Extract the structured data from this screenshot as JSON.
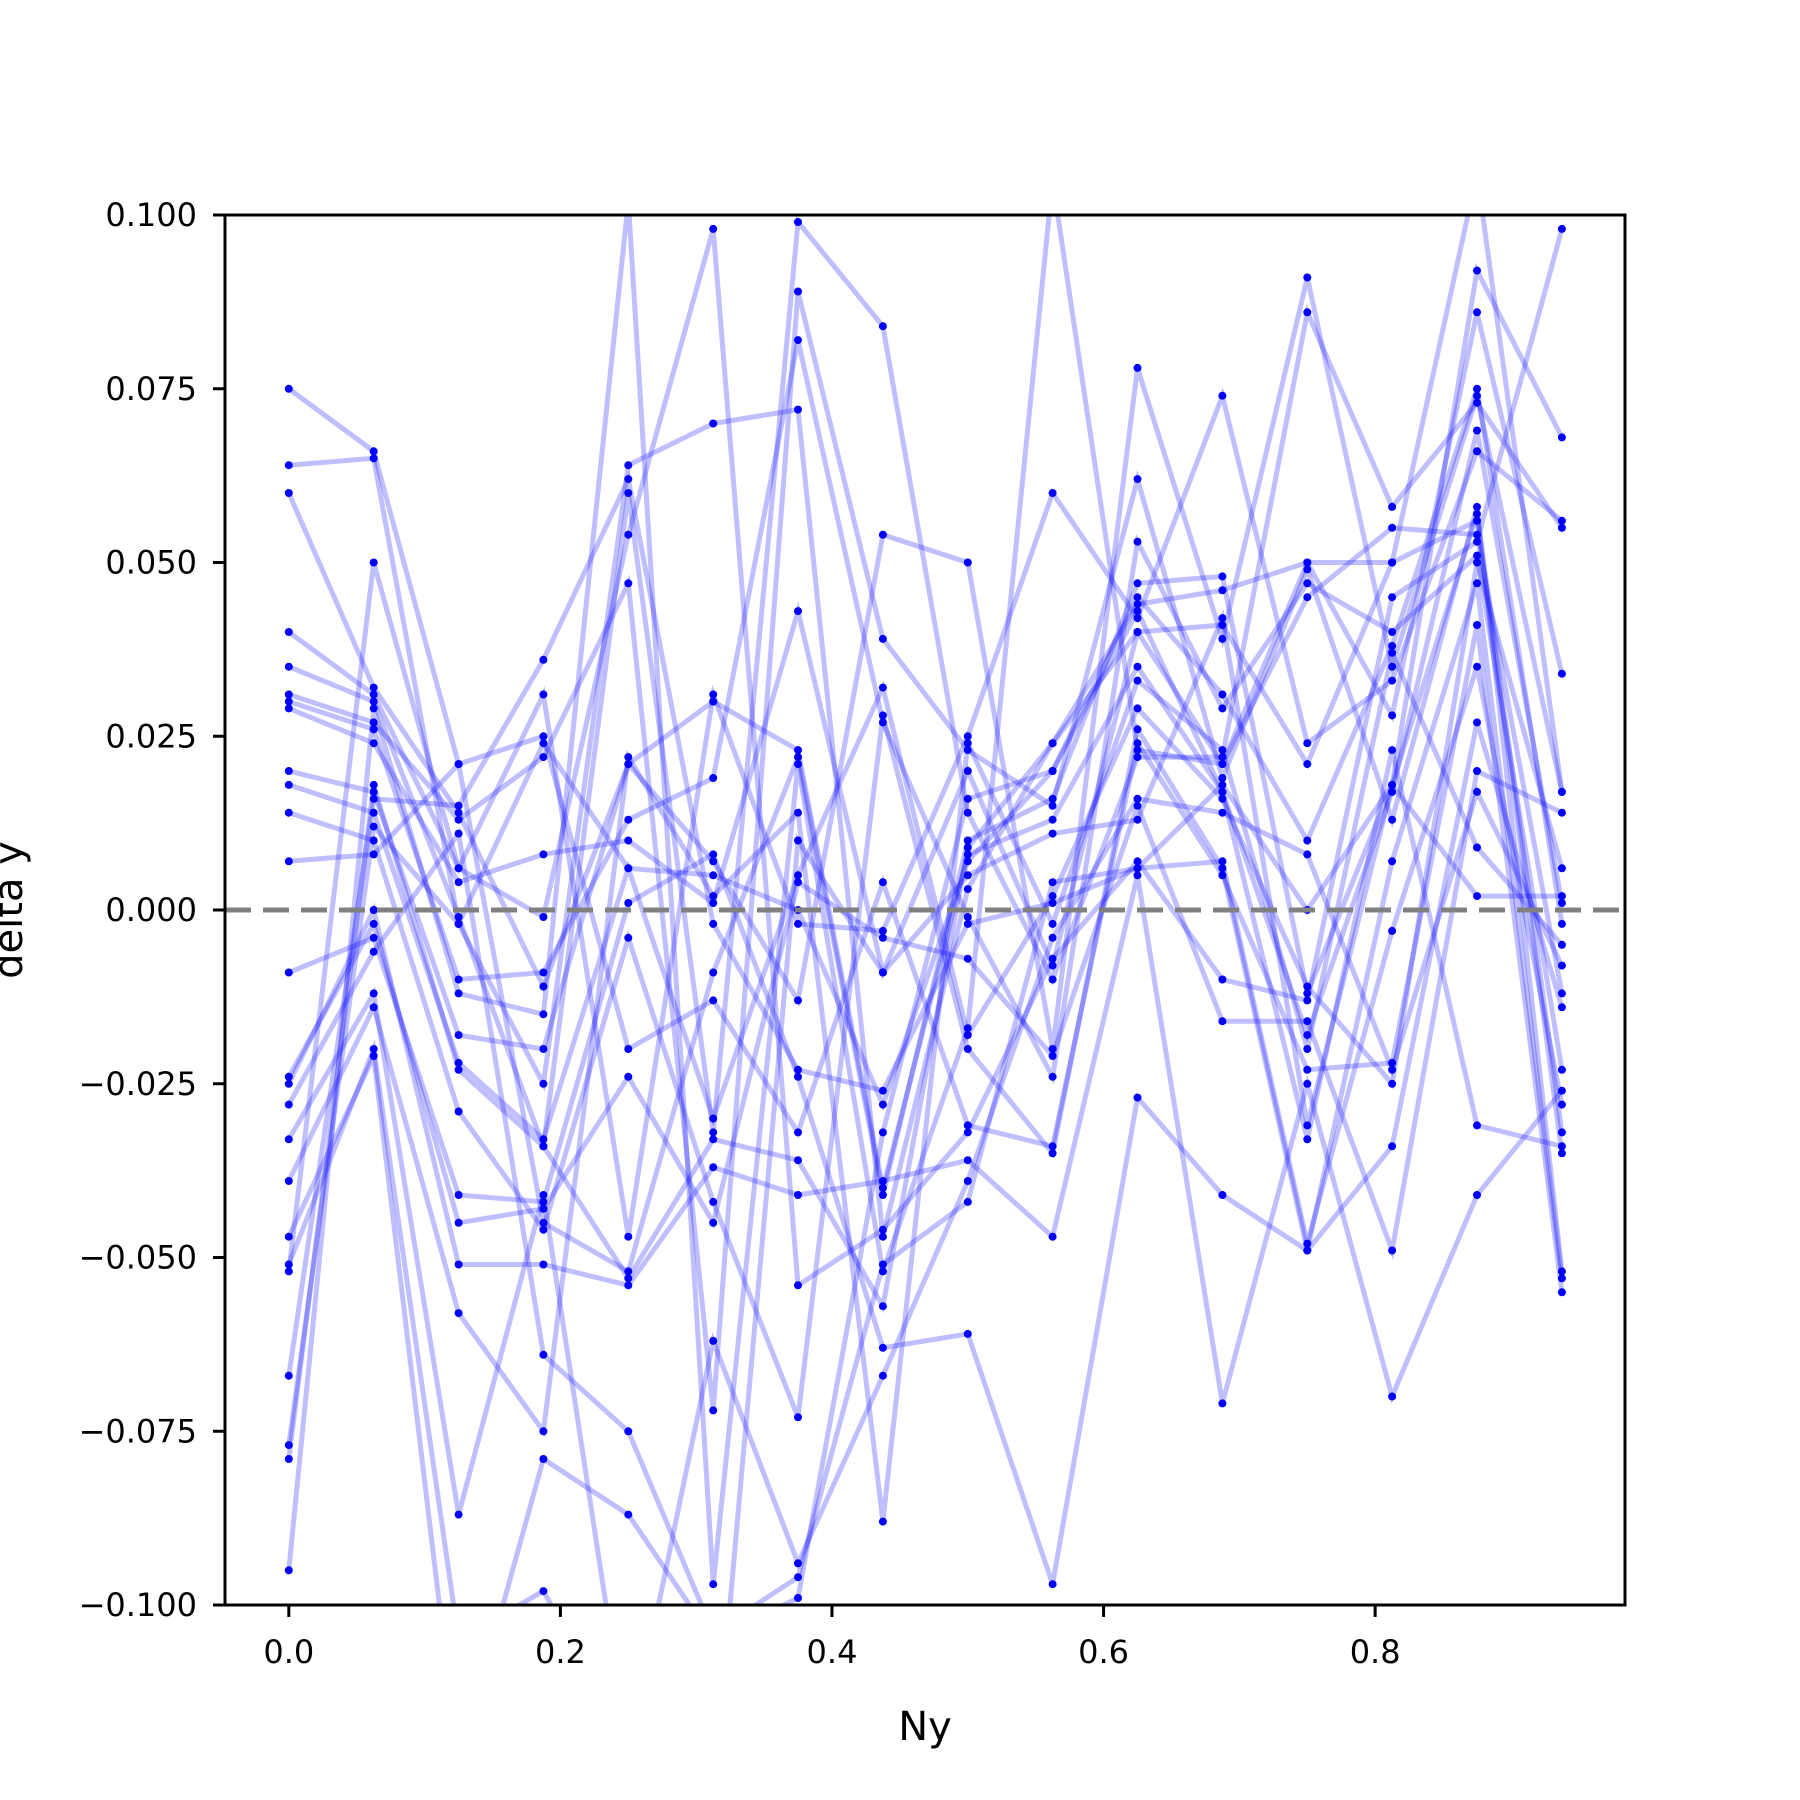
{
  "chart_data": {
    "type": "line",
    "title": "",
    "xlabel": "Ny",
    "ylabel": "delta y",
    "xlim": [
      -0.047,
      0.984
    ],
    "ylim": [
      -0.1,
      0.1
    ],
    "xticks": [
      0.0,
      0.2,
      0.4,
      0.6,
      0.8
    ],
    "xtick_labels": [
      "0.0",
      "0.2",
      "0.4",
      "0.6",
      "0.8"
    ],
    "yticks": [
      -0.1,
      -0.075,
      -0.05,
      -0.025,
      0.0,
      0.025,
      0.05,
      0.075,
      0.1
    ],
    "ytick_labels": [
      "−0.100",
      "−0.075",
      "−0.050",
      "−0.025",
      "0.000",
      "0.025",
      "0.050",
      "0.075",
      "0.100"
    ],
    "reference_line": {
      "y": 0.0,
      "style": "dashed",
      "color": "#808080"
    },
    "grid": false,
    "legend": "none",
    "line_color": "#0000ff",
    "marker_color": "#0000ff",
    "x": [
      0.0,
      0.0625,
      0.125,
      0.1875,
      0.25,
      0.3125,
      0.375,
      0.4375,
      0.5,
      0.5625,
      0.625,
      0.6875,
      0.75,
      0.8125,
      0.875,
      0.9375
    ],
    "series": [
      {
        "values": [
          0.075,
          0.066,
          0.021,
          -0.045,
          -0.052,
          -0.009,
          0.022,
          -0.041,
          0.01,
          0.016,
          0.047,
          0.048,
          -0.012,
          0.018,
          0.092,
          0.068
        ]
      },
      {
        "values": [
          0.064,
          0.065,
          -0.002,
          -0.025,
          0.064,
          0.07,
          0.072,
          -0.047,
          0.003,
          0.024,
          0.044,
          0.046,
          0.05,
          0.028,
          0.086,
          0.034
        ]
      },
      {
        "values": [
          0.06,
          0.032,
          0.014,
          -0.011,
          0.021,
          0.007,
          -0.013,
          0.054,
          0.05,
          -0.02,
          0.078,
          0.039,
          0.091,
          0.035,
          0.074,
          0.017
        ]
      },
      {
        "values": [
          0.04,
          0.031,
          0.006,
          0.031,
          -0.047,
          0.031,
          -0.002,
          -0.003,
          0.025,
          0.06,
          0.042,
          0.074,
          0.024,
          0.033,
          0.066,
          0.056
        ]
      },
      {
        "values": [
          0.035,
          0.03,
          -0.001,
          -0.034,
          0.06,
          -0.032,
          0.099,
          0.084,
          0.014,
          -0.01,
          0.022,
          0.022,
          0.086,
          0.058,
          0.073,
          0.055
        ]
      },
      {
        "values": [
          0.031,
          0.027,
          0.013,
          0.022,
          0.047,
          -0.072,
          0.089,
          0.039,
          0.023,
          0.015,
          0.062,
          0.019,
          0.049,
          0.013,
          0.058,
          -0.052
        ]
      },
      {
        "values": [
          0.03,
          0.026,
          -0.01,
          -0.009,
          0.013,
          0.019,
          0.082,
          0.027,
          -0.001,
          -0.024,
          0.053,
          0.029,
          0.047,
          0.04,
          0.051,
          -0.023
        ]
      },
      {
        "values": [
          0.029,
          0.024,
          0.004,
          0.008,
          0.01,
          0.001,
          0.043,
          -0.009,
          0.02,
          -0.008,
          0.04,
          0.041,
          0.021,
          0.05,
          0.056,
          -0.035
        ]
      },
      {
        "values": [
          0.02,
          0.017,
          -0.018,
          -0.02,
          0.021,
          0.03,
          0.023,
          -0.04,
          0.008,
          0.013,
          0.035,
          0.017,
          -0.018,
          0.017,
          0.069,
          0.001
        ]
      },
      {
        "values": [
          0.018,
          0.014,
          -0.022,
          -0.033,
          0.006,
          -0.03,
          0.005,
          0.032,
          -0.018,
          0.002,
          0.029,
          0.016,
          -0.011,
          -0.025,
          0.05,
          0.006
        ]
      },
      {
        "values": [
          0.014,
          0.01,
          -0.029,
          -0.046,
          -0.004,
          -0.042,
          -0.073,
          0.028,
          -0.02,
          -0.035,
          0.026,
          0.006,
          -0.049,
          0.007,
          0.047,
          -0.053
        ]
      },
      {
        "values": [
          0.007,
          0.008,
          0.021,
          0.025,
          -0.02,
          -0.013,
          -0.032,
          0.004,
          -0.031,
          -0.034,
          0.024,
          0.005,
          -0.023,
          -0.022,
          0.041,
          -0.055
        ]
      },
      {
        "values": [
          -0.009,
          -0.004,
          -0.041,
          -0.042,
          0.001,
          0.008,
          -0.024,
          -0.063,
          -0.061,
          -0.097,
          -0.027,
          -0.041,
          -0.049,
          -0.034,
          0.027,
          -0.014
        ]
      },
      {
        "values": [
          -0.024,
          -0.002,
          -0.045,
          -0.043,
          -0.024,
          -0.045,
          0.004,
          -0.004,
          -0.007,
          -0.021,
          0.015,
          -0.016,
          -0.016,
          -0.049,
          0.02,
          0.014
        ]
      },
      {
        "values": [
          -0.025,
          0.0,
          -0.051,
          -0.051,
          -0.054,
          -0.037,
          -0.041,
          -0.039,
          -0.036,
          -0.047,
          0.005,
          -0.071,
          -0.025,
          -0.07,
          -0.041,
          -0.026
        ]
      },
      {
        "values": [
          -0.028,
          -0.006,
          0.011,
          -0.064,
          -0.075,
          -0.104,
          -0.096,
          -0.051,
          -0.042,
          0.004,
          0.006,
          0.007,
          -0.048,
          -0.003,
          0.035,
          -0.028
        ]
      },
      {
        "values": [
          -0.033,
          -0.012,
          -0.087,
          -0.041,
          -0.121,
          -0.062,
          -0.094,
          -0.067,
          -0.039,
          -0.004,
          0.016,
          0.014,
          0.008,
          -0.023,
          0.017,
          -0.008
        ]
      },
      {
        "values": [
          -0.039,
          -0.014,
          -0.058,
          -0.075,
          0.022,
          0.002,
          0.014,
          -0.088,
          0.024,
          -0.002,
          0.033,
          0.023,
          -0.02,
          0.037,
          0.009,
          -0.005
        ]
      },
      {
        "values": [
          -0.047,
          -0.021,
          -0.123,
          -0.079,
          -0.087,
          -0.105,
          -0.099,
          -0.032,
          0.016,
          0.02,
          0.043,
          0.017,
          -0.033,
          0.023,
          -0.031,
          -0.034
        ]
      },
      {
        "values": [
          -0.051,
          -0.02,
          -0.105,
          -0.098,
          -0.12,
          -0.127,
          0.01,
          -0.009,
          0.005,
          0.011,
          0.013,
          0.042,
          -0.031,
          0.018,
          0.057,
          -0.032
        ]
      },
      {
        "values": [
          -0.052,
          0.05,
          0.006,
          -0.001,
          0.054,
          0.098,
          -0.054,
          -0.046,
          -0.032,
          -0.007,
          0.007,
          -0.01,
          -0.013,
          0.045,
          0.053,
          0.098
        ]
      },
      {
        "values": [
          -0.067,
          0.016,
          0.015,
          0.036,
          0.062,
          -0.002,
          -0.023,
          -0.026,
          -0.002,
          0.001,
          0.006,
          0.018,
          0.0,
          0.018,
          0.002,
          0.002
        ]
      },
      {
        "values": [
          -0.077,
          0.012,
          -0.002,
          0.024,
          0.006,
          0.005,
          0.0,
          -0.028,
          0.007,
          0.02,
          0.045,
          0.031,
          0.01,
          0.038,
          0.075,
          -0.002
        ]
      },
      {
        "values": [
          -0.079,
          0.018,
          -0.023,
          -0.034,
          -0.053,
          -0.033,
          -0.036,
          -0.057,
          0.009,
          0.024,
          0.04,
          0.021,
          0.045,
          0.055,
          0.054,
          -0.012
        ]
      },
      {
        "values": [
          -0.095,
          0.029,
          -0.012,
          -0.015,
          0.102,
          -0.097,
          0.021,
          -0.052,
          -0.017,
          0.105,
          0.023,
          0.021,
          0.05,
          0.05,
          0.106,
          0.017
        ]
      }
    ]
  }
}
